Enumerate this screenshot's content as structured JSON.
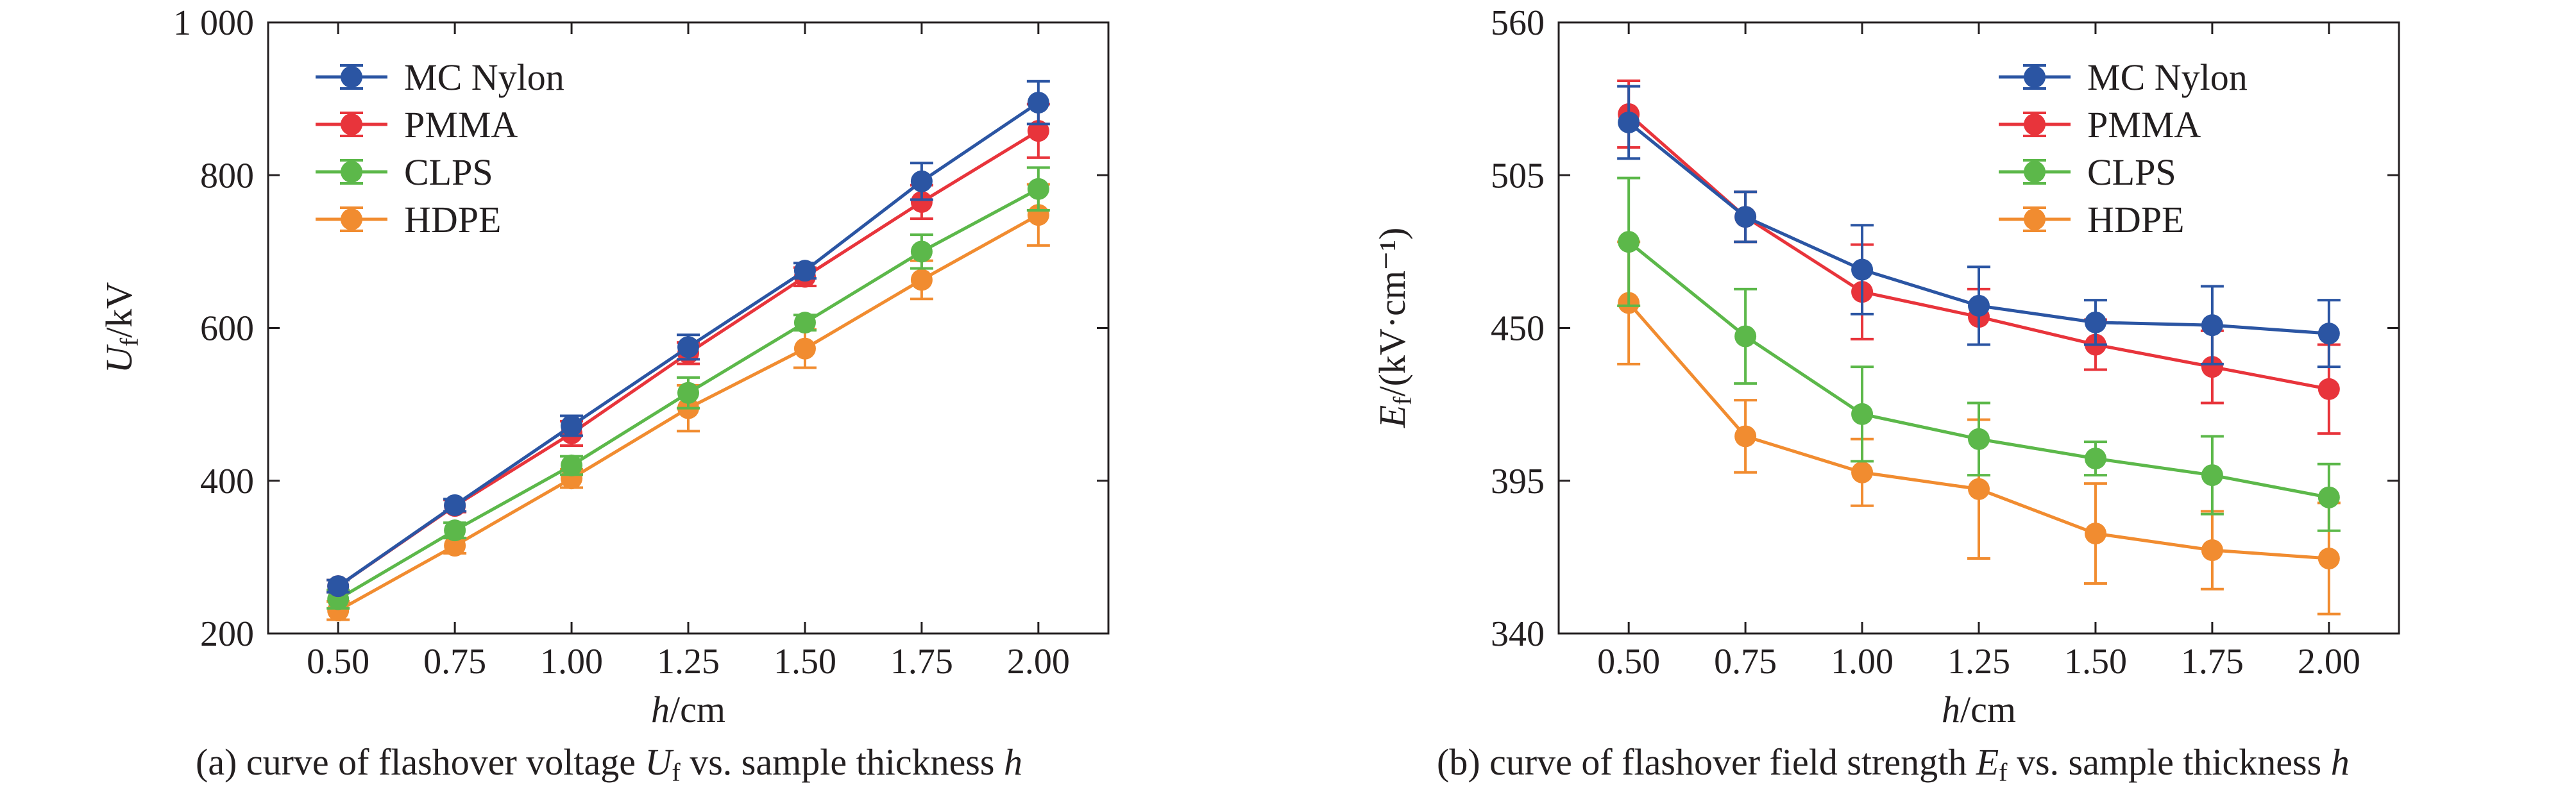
{
  "colors": {
    "MC Nylon": "#2b55a3",
    "PMMA": "#e8343b",
    "CLPS": "#5cb84a",
    "HDPE": "#f18c30",
    "axis": "#231f20"
  },
  "chart_data": [
    {
      "type": "line",
      "panel": "a",
      "caption": {
        "prefix": "(a) curve of flashover voltage ",
        "sym": "U",
        "sub": "f",
        "mid": " vs. sample thickness ",
        "end": "h"
      },
      "xlabel": {
        "sym": "h",
        "unit": "/cm"
      },
      "ylabel": {
        "sym": "U",
        "sub": "f",
        "unit": "/kV"
      },
      "x": [
        0.5,
        0.75,
        1.0,
        1.25,
        1.5,
        1.75,
        2.0
      ],
      "x_ticks": [
        "0.50",
        "0.75",
        "1.00",
        "1.25",
        "1.50",
        "1.75",
        "2.00"
      ],
      "xlim": [
        0.35,
        2.15
      ],
      "ylim": [
        200,
        1000
      ],
      "y_ticks": [
        200,
        400,
        600,
        800,
        1000
      ],
      "y_tick_labels": [
        "200",
        "400",
        "600",
        "800",
        "1 000"
      ],
      "legend": "top-left",
      "grid": false,
      "series": [
        {
          "name": "MC Nylon",
          "values": [
            262,
            368,
            472,
            575,
            675,
            792,
            895
          ],
          "err": [
            8,
            8,
            13,
            16,
            10,
            24,
            28
          ]
        },
        {
          "name": "PMMA",
          "values": [
            262,
            367,
            462,
            567,
            667,
            765,
            858
          ],
          "err": [
            8,
            8,
            16,
            14,
            12,
            22,
            35
          ]
        },
        {
          "name": "CLPS",
          "values": [
            245,
            335,
            420,
            515,
            607,
            700,
            782
          ],
          "err": [
            12,
            10,
            12,
            20,
            10,
            22,
            28
          ]
        },
        {
          "name": "HDPE",
          "values": [
            230,
            315,
            403,
            495,
            573,
            663,
            748
          ],
          "err": [
            12,
            10,
            12,
            30,
            25,
            25,
            40
          ]
        }
      ]
    },
    {
      "type": "line",
      "panel": "b",
      "caption": {
        "prefix": "(b) curve of flashover field strength ",
        "sym": "E",
        "sub": "f",
        "mid": " vs. sample thickness ",
        "end": "h"
      },
      "xlabel": {
        "sym": "h",
        "unit": "/cm"
      },
      "ylabel": {
        "sym": "E",
        "sub": "f",
        "unit": "/(kV·cm⁻¹)"
      },
      "x": [
        0.5,
        0.75,
        1.0,
        1.25,
        1.5,
        1.75,
        2.0
      ],
      "x_ticks": [
        "0.50",
        "0.75",
        "1.00",
        "1.25",
        "1.50",
        "1.75",
        "2.00"
      ],
      "xlim": [
        0.35,
        2.15
      ],
      "ylim": [
        340,
        560
      ],
      "y_ticks": [
        340,
        395,
        450,
        505,
        560
      ],
      "y_tick_labels": [
        "340",
        "395",
        "450",
        "505",
        "560"
      ],
      "legend": "top-right",
      "grid": false,
      "series": [
        {
          "name": "MC Nylon",
          "values": [
            524,
            490,
            471,
            458,
            452,
            451,
            448
          ],
          "err": [
            13,
            9,
            16,
            14,
            8,
            14,
            12
          ]
        },
        {
          "name": "PMMA",
          "values": [
            527,
            490,
            463,
            454,
            444,
            436,
            428
          ],
          "err": [
            12,
            9,
            17,
            10,
            9,
            13,
            16
          ]
        },
        {
          "name": "CLPS",
          "values": [
            481,
            447,
            419,
            410,
            403,
            397,
            389
          ],
          "err": [
            23,
            17,
            17,
            13,
            6,
            14,
            12
          ]
        },
        {
          "name": "HDPE",
          "values": [
            459,
            411,
            398,
            392,
            376,
            370,
            367
          ],
          "err": [
            22,
            13,
            12,
            25,
            18,
            14,
            20
          ]
        }
      ]
    }
  ]
}
